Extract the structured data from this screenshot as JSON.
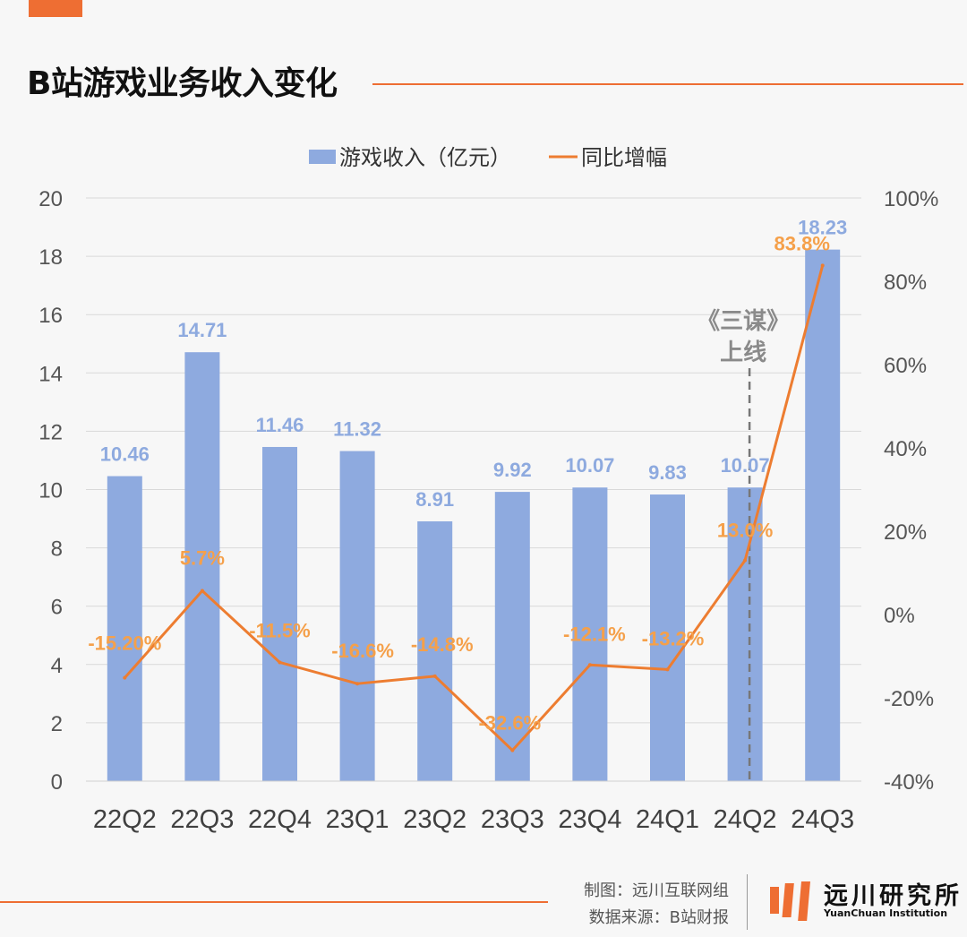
{
  "header": {
    "title": "B站游戏业务收入变化"
  },
  "chart_data": {
    "type": "bar+line",
    "categories": [
      "22Q2",
      "22Q3",
      "22Q4",
      "23Q1",
      "23Q2",
      "23Q3",
      "23Q4",
      "24Q1",
      "24Q2",
      "24Q3"
    ],
    "series": [
      {
        "name": "游戏收入（亿元）",
        "type": "bar",
        "axis": "left",
        "color": "#8eaadf",
        "values": [
          10.46,
          14.71,
          11.46,
          11.32,
          8.91,
          9.92,
          10.07,
          9.83,
          10.07,
          18.23
        ],
        "labels": [
          "10.46",
          "14.71",
          "11.46",
          "11.32",
          "8.91",
          "9.92",
          "10.07",
          "9.83",
          "10.07",
          "18.23"
        ]
      },
      {
        "name": "同比增幅",
        "type": "line",
        "axis": "right",
        "color": "#ed7d31",
        "values": [
          -15.2,
          5.7,
          -11.5,
          -16.6,
          -14.8,
          -32.6,
          -12.1,
          -13.2,
          13.0,
          83.8
        ],
        "labels": [
          "-15.20%",
          "5.7%",
          "-11.5%",
          "-16.6%",
          "-14.8%",
          "-32.6%",
          "-12.1%",
          "-13.2%",
          "13.0%",
          "83.8%"
        ]
      }
    ],
    "ylim_left": [
      0,
      20
    ],
    "yticks_left": [
      "0",
      "2",
      "4",
      "6",
      "8",
      "10",
      "12",
      "14",
      "16",
      "18",
      "20"
    ],
    "ylim_right": [
      -40,
      100
    ],
    "yticks_right": [
      "-40%",
      "-20%",
      "0%",
      "20%",
      "40%",
      "60%",
      "80%",
      "100%"
    ],
    "grid": true,
    "legend_position": "top-center",
    "annotation": {
      "category": "24Q2",
      "line1": "《三谋》",
      "line2": "上线"
    }
  },
  "colors": {
    "accent": "#ee6e33",
    "bar": "#8eaadf",
    "bar_label": "#8eaadf",
    "line": "#ed7d31",
    "line_label": "#f5a04a",
    "annotation": "#8a8a8a"
  },
  "footer": {
    "credit": "制图：远川互联网组",
    "source": "数据来源：B站财报",
    "logo_name": "远川研究所",
    "logo_en": "YuanChuan Institution"
  }
}
